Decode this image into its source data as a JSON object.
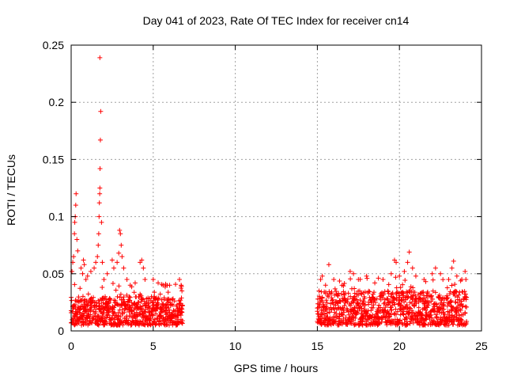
{
  "chart_data": {
    "type": "scatter",
    "title": "Day 041 of 2023, Rate Of TEC Index for receiver cn14",
    "xlabel": "GPS time / hours",
    "ylabel": "ROTI / TECUs",
    "xlim": [
      0,
      25
    ],
    "ylim": [
      0,
      0.25
    ],
    "xticks": [
      0,
      5,
      10,
      15,
      20,
      25
    ],
    "xtick_labels": [
      "0",
      "5",
      "10",
      "15",
      "20",
      "25"
    ],
    "yticks": [
      0,
      0.05,
      0.1,
      0.15,
      0.2,
      0.25
    ],
    "ytick_labels": [
      "0",
      "0.05",
      "0.1",
      "0.15",
      "0.2",
      "0.25"
    ],
    "grid": true,
    "marker": "+",
    "color": "#ff0000",
    "series": [
      {
        "name": "ROTI",
        "segments": [
          {
            "x_start": 0.0,
            "x_end": 6.8,
            "baseline_min": 0.005,
            "baseline_max": 0.03
          },
          {
            "x_start": 15.0,
            "x_end": 24.1,
            "baseline_min": 0.005,
            "baseline_max": 0.035
          }
        ],
        "points": [
          [
            0.05,
            0.052
          ],
          [
            0.1,
            0.06
          ],
          [
            0.15,
            0.065
          ],
          [
            0.2,
            0.085
          ],
          [
            0.22,
            0.095
          ],
          [
            0.25,
            0.1
          ],
          [
            0.28,
            0.11
          ],
          [
            0.3,
            0.12
          ],
          [
            0.35,
            0.08
          ],
          [
            0.4,
            0.07
          ],
          [
            0.6,
            0.055
          ],
          [
            0.7,
            0.05
          ],
          [
            0.75,
            0.062
          ],
          [
            0.8,
            0.058
          ],
          [
            0.9,
            0.045
          ],
          [
            1.0,
            0.048
          ],
          [
            1.2,
            0.052
          ],
          [
            1.4,
            0.055
          ],
          [
            1.5,
            0.06
          ],
          [
            1.6,
            0.065
          ],
          [
            1.65,
            0.075
          ],
          [
            1.68,
            0.085
          ],
          [
            1.7,
            0.1
          ],
          [
            1.72,
            0.112
          ],
          [
            1.74,
            0.12
          ],
          [
            1.75,
            0.125
          ],
          [
            1.76,
            0.142
          ],
          [
            1.78,
            0.167
          ],
          [
            1.8,
            0.192
          ],
          [
            1.75,
            0.239
          ],
          [
            1.85,
            0.095
          ],
          [
            1.9,
            0.06
          ],
          [
            2.0,
            0.045
          ],
          [
            2.2,
            0.05
          ],
          [
            2.5,
            0.062
          ],
          [
            2.6,
            0.055
          ],
          [
            2.8,
            0.06
          ],
          [
            2.9,
            0.068
          ],
          [
            2.95,
            0.088
          ],
          [
            3.0,
            0.085
          ],
          [
            3.05,
            0.075
          ],
          [
            3.1,
            0.065
          ],
          [
            3.2,
            0.055
          ],
          [
            3.4,
            0.045
          ],
          [
            3.6,
            0.04
          ],
          [
            3.9,
            0.042
          ],
          [
            4.2,
            0.06
          ],
          [
            4.3,
            0.062
          ],
          [
            4.4,
            0.055
          ],
          [
            4.5,
            0.045
          ],
          [
            5.0,
            0.045
          ],
          [
            5.3,
            0.042
          ],
          [
            5.6,
            0.04
          ],
          [
            6.0,
            0.04
          ],
          [
            6.6,
            0.045
          ],
          [
            6.7,
            0.04
          ],
          [
            6.75,
            0.035
          ],
          [
            15.1,
            0.035
          ],
          [
            15.2,
            0.045
          ],
          [
            15.3,
            0.048
          ],
          [
            15.5,
            0.04
          ],
          [
            15.7,
            0.058
          ],
          [
            16.0,
            0.045
          ],
          [
            16.5,
            0.04
          ],
          [
            17.0,
            0.052
          ],
          [
            17.2,
            0.05
          ],
          [
            17.5,
            0.045
          ],
          [
            18.0,
            0.048
          ],
          [
            18.5,
            0.042
          ],
          [
            19.0,
            0.045
          ],
          [
            19.5,
            0.05
          ],
          [
            19.7,
            0.062
          ],
          [
            19.8,
            0.06
          ],
          [
            20.0,
            0.048
          ],
          [
            20.3,
            0.052
          ],
          [
            20.5,
            0.06
          ],
          [
            20.6,
            0.069
          ],
          [
            20.8,
            0.055
          ],
          [
            21.0,
            0.048
          ],
          [
            21.5,
            0.045
          ],
          [
            22.0,
            0.05
          ],
          [
            22.2,
            0.055
          ],
          [
            22.5,
            0.05
          ],
          [
            23.0,
            0.045
          ],
          [
            23.2,
            0.055
          ],
          [
            23.3,
            0.061
          ],
          [
            23.5,
            0.048
          ],
          [
            23.8,
            0.045
          ],
          [
            24.0,
            0.052
          ],
          [
            24.05,
            0.045
          ]
        ]
      }
    ]
  }
}
